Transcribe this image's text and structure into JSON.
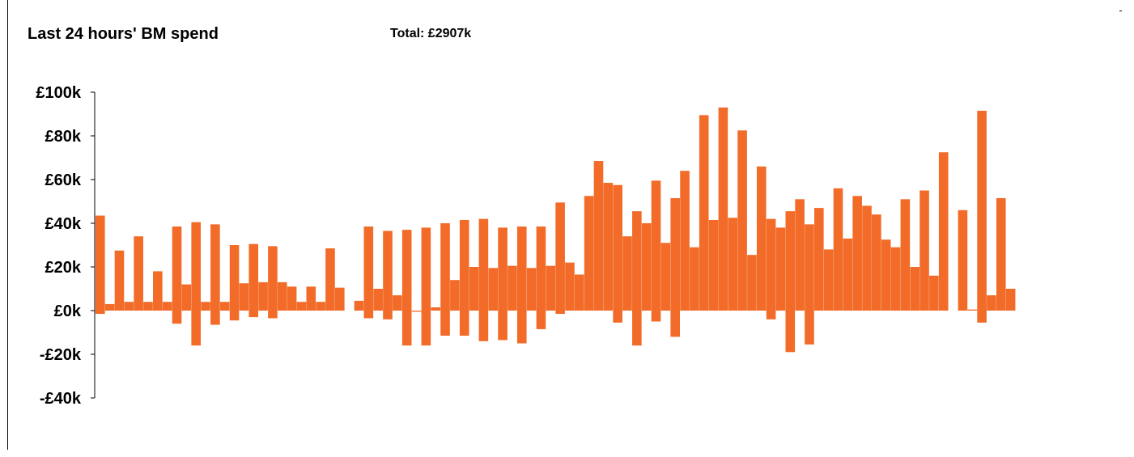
{
  "title": "Last 24 hours' BM spend",
  "total": "Total: £2907k",
  "colors": {
    "bar": "#f26b28",
    "axis": "#000000",
    "text": "#000000"
  },
  "chart_data": {
    "type": "bar",
    "title": "Last 24 hours' BM spend",
    "subtitle": "Total: £2907k",
    "xlabel": "",
    "ylabel": "",
    "ylim": [
      -40,
      100
    ],
    "y_unit": "£k",
    "y_ticks": [
      {
        "value": 100,
        "label": "£100k"
      },
      {
        "value": 80,
        "label": "£80k"
      },
      {
        "value": 60,
        "label": "£60k"
      },
      {
        "value": 40,
        "label": "£40k"
      },
      {
        "value": 20,
        "label": "£20k"
      },
      {
        "value": 0,
        "label": "£0k"
      },
      {
        "value": -20,
        "label": "-£20k"
      },
      {
        "value": -40,
        "label": "-£40k"
      }
    ],
    "grid": false,
    "legend": "none",
    "bars": [
      [
        43.5,
        -1.5
      ],
      [
        3,
        0
      ],
      [
        27.5,
        0
      ],
      [
        4,
        0
      ],
      [
        34,
        0
      ],
      [
        4,
        0
      ],
      [
        18,
        0
      ],
      [
        4,
        0
      ],
      [
        38.5,
        -6
      ],
      [
        12,
        0
      ],
      [
        40.5,
        -16
      ],
      [
        4,
        0
      ],
      [
        39.5,
        -6.5
      ],
      [
        4,
        0
      ],
      [
        30,
        -4.5
      ],
      [
        12.5,
        0
      ],
      [
        30.5,
        -3
      ],
      [
        13,
        0
      ],
      [
        29.5,
        -3.5
      ],
      [
        13,
        0
      ],
      [
        11,
        0
      ],
      [
        4,
        0
      ],
      [
        11,
        0
      ],
      [
        4,
        0
      ],
      [
        28.5,
        0
      ],
      [
        10.5,
        0
      ],
      null,
      [
        4.5,
        0
      ],
      [
        38.5,
        -3.5
      ],
      [
        10,
        0
      ],
      [
        36.5,
        -4
      ],
      [
        7,
        0
      ],
      [
        37,
        -16
      ],
      [
        0,
        -0.5
      ],
      [
        38,
        -16
      ],
      [
        1.5,
        0
      ],
      [
        40,
        -11.5
      ],
      [
        14,
        0
      ],
      [
        41.5,
        -11.5
      ],
      [
        20,
        0
      ],
      [
        42,
        -14
      ],
      [
        19.5,
        0
      ],
      [
        38,
        -13.5
      ],
      [
        20.5,
        0
      ],
      [
        38.5,
        -15
      ],
      [
        19.5,
        0
      ],
      [
        38.5,
        -8.5
      ],
      [
        20.5,
        0
      ],
      [
        49.5,
        -1.5
      ],
      [
        22,
        0
      ],
      [
        16.5,
        0
      ],
      [
        52.5,
        0
      ],
      [
        68.5,
        0
      ],
      [
        58.5,
        0
      ],
      [
        57.5,
        -5.5
      ],
      [
        34,
        0
      ],
      [
        45.5,
        -16
      ],
      [
        40,
        0
      ],
      [
        59.5,
        -5
      ],
      [
        31,
        0
      ],
      [
        51.5,
        -12
      ],
      [
        64,
        0
      ],
      [
        29,
        0
      ],
      [
        89.5,
        0
      ],
      [
        41.5,
        0
      ],
      [
        93,
        0
      ],
      [
        42.5,
        0
      ],
      [
        82.5,
        0
      ],
      [
        25.5,
        0
      ],
      [
        66,
        0
      ],
      [
        42,
        -4
      ],
      [
        38,
        0
      ],
      [
        45.5,
        -19
      ],
      [
        51,
        0
      ],
      [
        39.5,
        -15.5
      ],
      [
        47,
        0
      ],
      [
        28,
        0
      ],
      [
        56,
        0
      ],
      [
        33,
        0
      ],
      [
        52.5,
        0
      ],
      [
        48,
        0
      ],
      [
        44,
        0
      ],
      [
        32.5,
        0
      ],
      [
        29,
        0
      ],
      [
        51,
        0
      ],
      [
        20,
        0
      ],
      [
        55,
        0
      ],
      [
        16,
        0
      ],
      [
        72.5,
        0
      ],
      null,
      [
        46,
        0
      ],
      [
        0.5,
        0
      ],
      [
        91.5,
        -5.5
      ],
      [
        7,
        0
      ],
      [
        51.5,
        0
      ],
      [
        10,
        0
      ]
    ]
  }
}
